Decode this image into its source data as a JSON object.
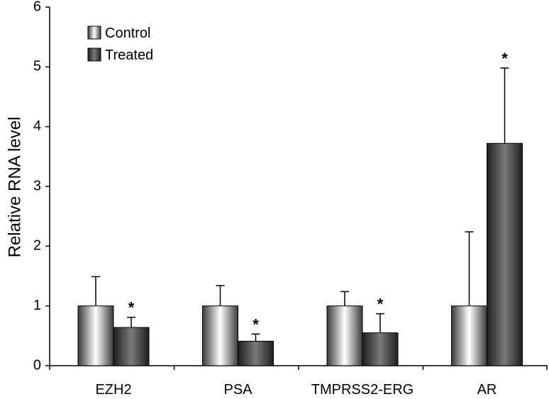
{
  "chart_data": {
    "type": "bar",
    "title": "",
    "xlabel": "",
    "ylabel": "Relative RNA level",
    "ylim": [
      0,
      6
    ],
    "yticks": [
      "0",
      "1",
      "2",
      "3",
      "4",
      "5",
      "6"
    ],
    "categories": [
      "EZH2",
      "PSA",
      "TMPRSS2-ERG",
      "AR"
    ],
    "series": [
      {
        "name": "Control",
        "values": [
          1.0,
          1.0,
          1.0,
          1.0
        ],
        "errors": [
          0.49,
          0.34,
          0.24,
          1.24
        ],
        "significant": [
          false,
          false,
          false,
          false
        ]
      },
      {
        "name": "Treated",
        "values": [
          0.64,
          0.41,
          0.55,
          3.72
        ],
        "errors": [
          0.17,
          0.12,
          0.32,
          1.26
        ],
        "significant": [
          true,
          true,
          true,
          true
        ]
      }
    ],
    "significance_marker": "*",
    "legend_position": "top-left",
    "grid": false
  }
}
